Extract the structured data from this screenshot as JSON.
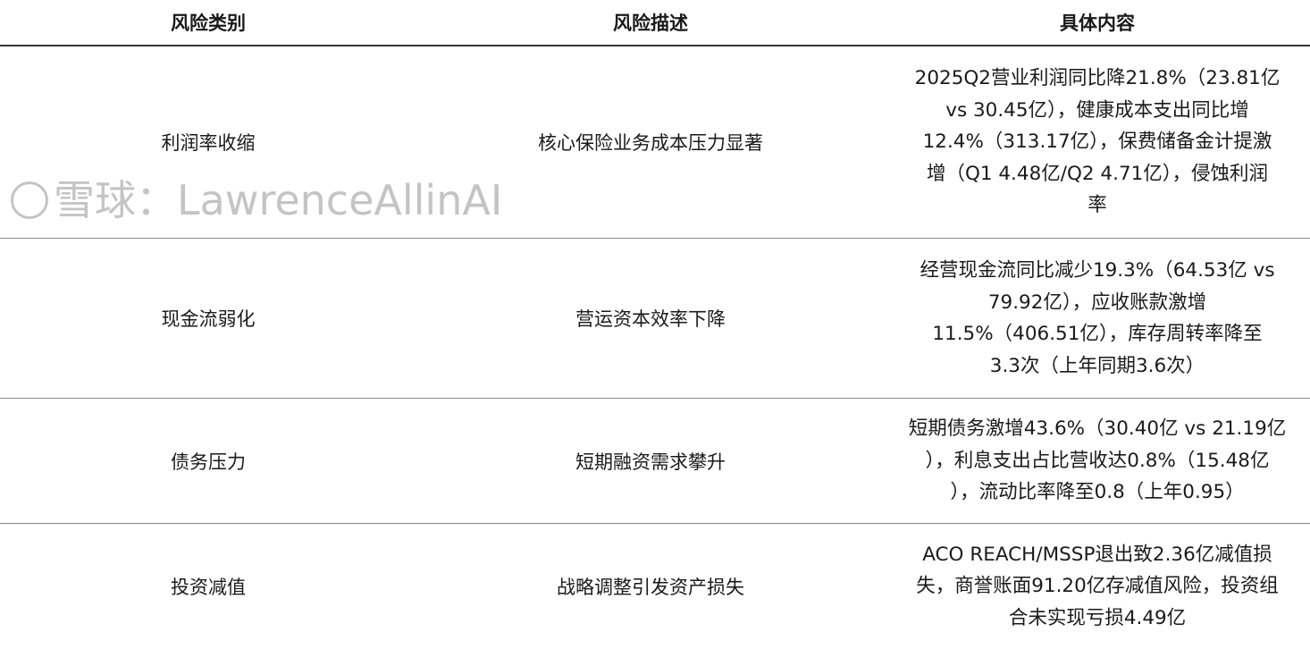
{
  "table": {
    "headers": [
      "风险类别",
      "风险描述",
      "具体内容"
    ],
    "rows": [
      {
        "category": "利润率收缩",
        "description": "核心保险业务成本压力显著",
        "content": [
          "2025Q2营业利润同比降21.8%（23.81亿",
          "vs 30.45亿），健康成本支出同比增",
          "12.4%（313.17亿），保费储备金计提激",
          "增（Q1 4.48亿/Q2 4.71亿），侵蚀利润",
          "率"
        ]
      },
      {
        "category": "现金流弱化",
        "description": "营运资本效率下降",
        "content": [
          "经营现金流同比减少19.3%（64.53亿 vs",
          "79.92亿），应收账款激增",
          "11.5%（406.51亿），库存周转率降至",
          "3.3次（上年同期3.6次）"
        ]
      },
      {
        "category": "债务压力",
        "description": "短期融资需求攀升",
        "content": [
          "短期债务激增43.6%（30.40亿 vs 21.19亿",
          "），利息支出占比营收达0.8%（15.48亿",
          "），流动比率降至0.8（上年0.95）"
        ]
      },
      {
        "category": "投资减值",
        "description": "战略调整引发资产损失",
        "content": [
          "ACO REACH/MSSP退出致2.36亿减值损",
          "失，商誉账面91.20亿存减值风险，投资组",
          "合未实现亏损4.49亿"
        ]
      }
    ]
  },
  "watermark": "雪球：LawrenceAllinAI"
}
